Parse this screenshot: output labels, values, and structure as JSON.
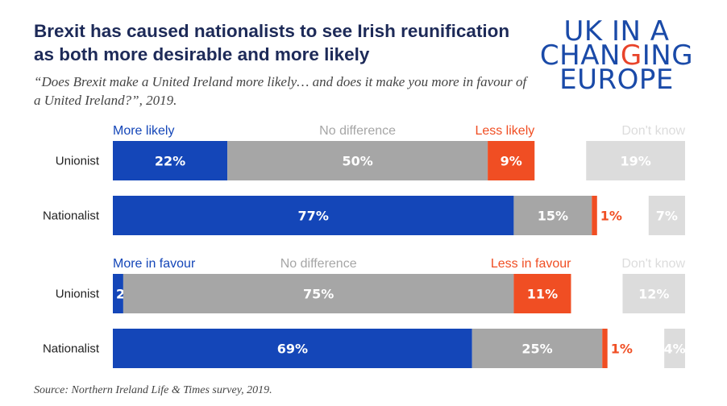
{
  "title": "Brexit has caused nationalists to see Irish reunification as both more desirable and more likely",
  "subtitle": "“Does Brexit make a United Ireland more likely… and does it make you more in favour of a United Ireland?”, 2019.",
  "source": "Source: Northern Ireland Life & Times survey, 2019.",
  "logo": {
    "line1": "UK IN A",
    "line2a": "CHAN",
    "line2b": "G",
    "line2c": "ING",
    "line3": "EUROPE"
  },
  "colors": {
    "positive": "#1446b8",
    "neutral": "#a6a6a6",
    "negative": "#f04e23",
    "dontknow": "#dcdcdc"
  },
  "chart_data": [
    {
      "type": "bar",
      "orientation": "horizontal",
      "stacked": true,
      "categories": [
        "Unionist",
        "Nationalist"
      ],
      "series": [
        {
          "name": "More likely",
          "values": [
            22,
            77
          ]
        },
        {
          "name": "No difference",
          "values": [
            50,
            15
          ]
        },
        {
          "name": "Less likely",
          "values": [
            9,
            1
          ]
        },
        {
          "name": "Don't know",
          "values": [
            19,
            7
          ]
        }
      ],
      "xlim": [
        0,
        100
      ]
    },
    {
      "type": "bar",
      "orientation": "horizontal",
      "stacked": true,
      "categories": [
        "Unionist",
        "Nationalist"
      ],
      "series": [
        {
          "name": "More in favour",
          "values": [
            2,
            69
          ]
        },
        {
          "name": "No difference",
          "values": [
            75,
            25
          ]
        },
        {
          "name": "Less in favour",
          "values": [
            11,
            1
          ]
        },
        {
          "name": "Don't know",
          "values": [
            12,
            4
          ]
        }
      ],
      "xlim": [
        0,
        100
      ]
    }
  ]
}
